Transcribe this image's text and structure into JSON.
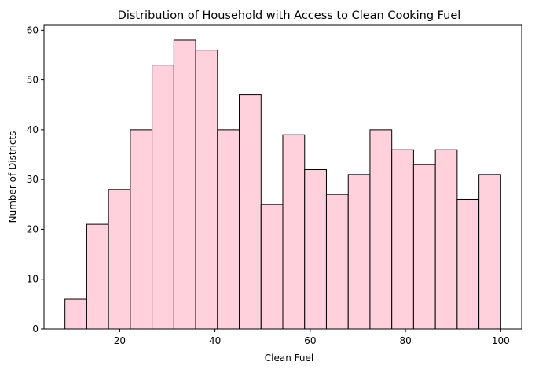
{
  "chart_data": {
    "type": "bar",
    "title": "Distribution of Household with Access to Clean Cooking Fuel",
    "xlabel": "Clean Fuel",
    "ylabel": "Number of Districts",
    "bin_edges": [
      8.5,
      13.08,
      17.65,
      22.23,
      26.8,
      31.38,
      35.95,
      40.53,
      45.1,
      49.68,
      54.25,
      58.83,
      63.4,
      67.98,
      72.55,
      77.13,
      81.7,
      86.28,
      90.85,
      95.43,
      100.0
    ],
    "values": [
      6,
      21,
      28,
      40,
      53,
      58,
      56,
      40,
      47,
      25,
      39,
      32,
      27,
      31,
      40,
      36,
      33,
      36,
      26,
      31
    ],
    "xlim": [
      4.1,
      104.4
    ],
    "ylim": [
      0,
      61
    ],
    "xticks": [
      20,
      40,
      60,
      80,
      100
    ],
    "yticks": [
      0,
      10,
      20,
      30,
      40,
      50,
      60
    ],
    "grid": false,
    "bar_color": "#FFD1DC",
    "edge_color": "#000000"
  }
}
